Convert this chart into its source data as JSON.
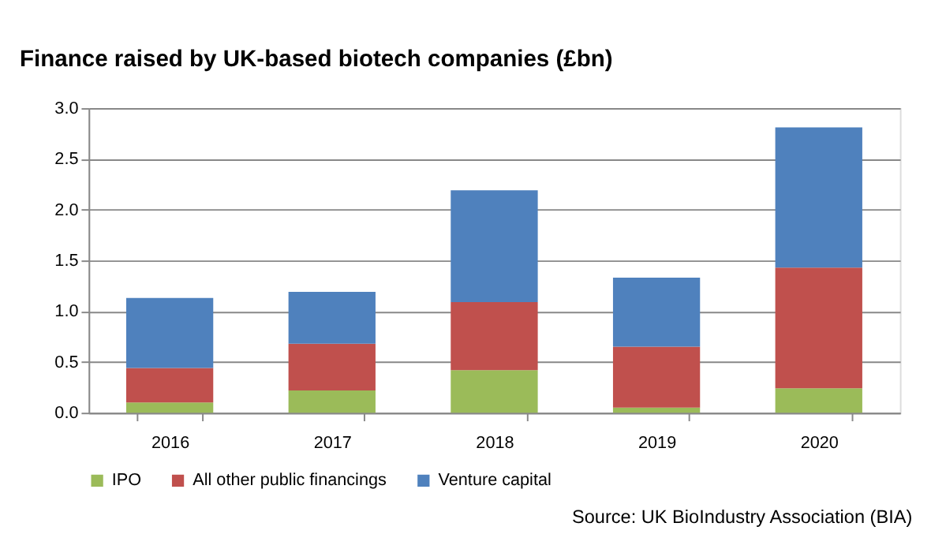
{
  "chart_data": {
    "type": "bar",
    "stacked": true,
    "title": "Finance raised by UK-based biotech companies (£bn)",
    "categories": [
      "2016",
      "2017",
      "2018",
      "2019",
      "2020"
    ],
    "series": [
      {
        "name": "IPO",
        "color": "#9bbb59",
        "values": [
          0.1,
          0.22,
          0.42,
          0.05,
          0.24
        ]
      },
      {
        "name": "All other public financings",
        "color": "#c0504d",
        "values": [
          0.34,
          0.46,
          0.67,
          0.6,
          1.19
        ]
      },
      {
        "name": "Venture capital",
        "color": "#4f81bd",
        "values": [
          0.69,
          0.51,
          1.1,
          0.68,
          1.38
        ]
      }
    ],
    "ylim": [
      0,
      3.0
    ],
    "yticks": [
      {
        "value": 0,
        "label": "0.0"
      },
      {
        "value": 0.5,
        "label": "0.5"
      },
      {
        "value": 1,
        "label": "1.0"
      },
      {
        "value": 1.5,
        "label": "1.5"
      },
      {
        "value": 2,
        "label": "2.0"
      },
      {
        "value": 2.5,
        "label": "2.5"
      },
      {
        "value": 3,
        "label": "3.0"
      }
    ],
    "grid": "y",
    "legend": "bottom",
    "annotations": [
      "Source: UK BioIndustry Association (BIA)"
    ]
  }
}
